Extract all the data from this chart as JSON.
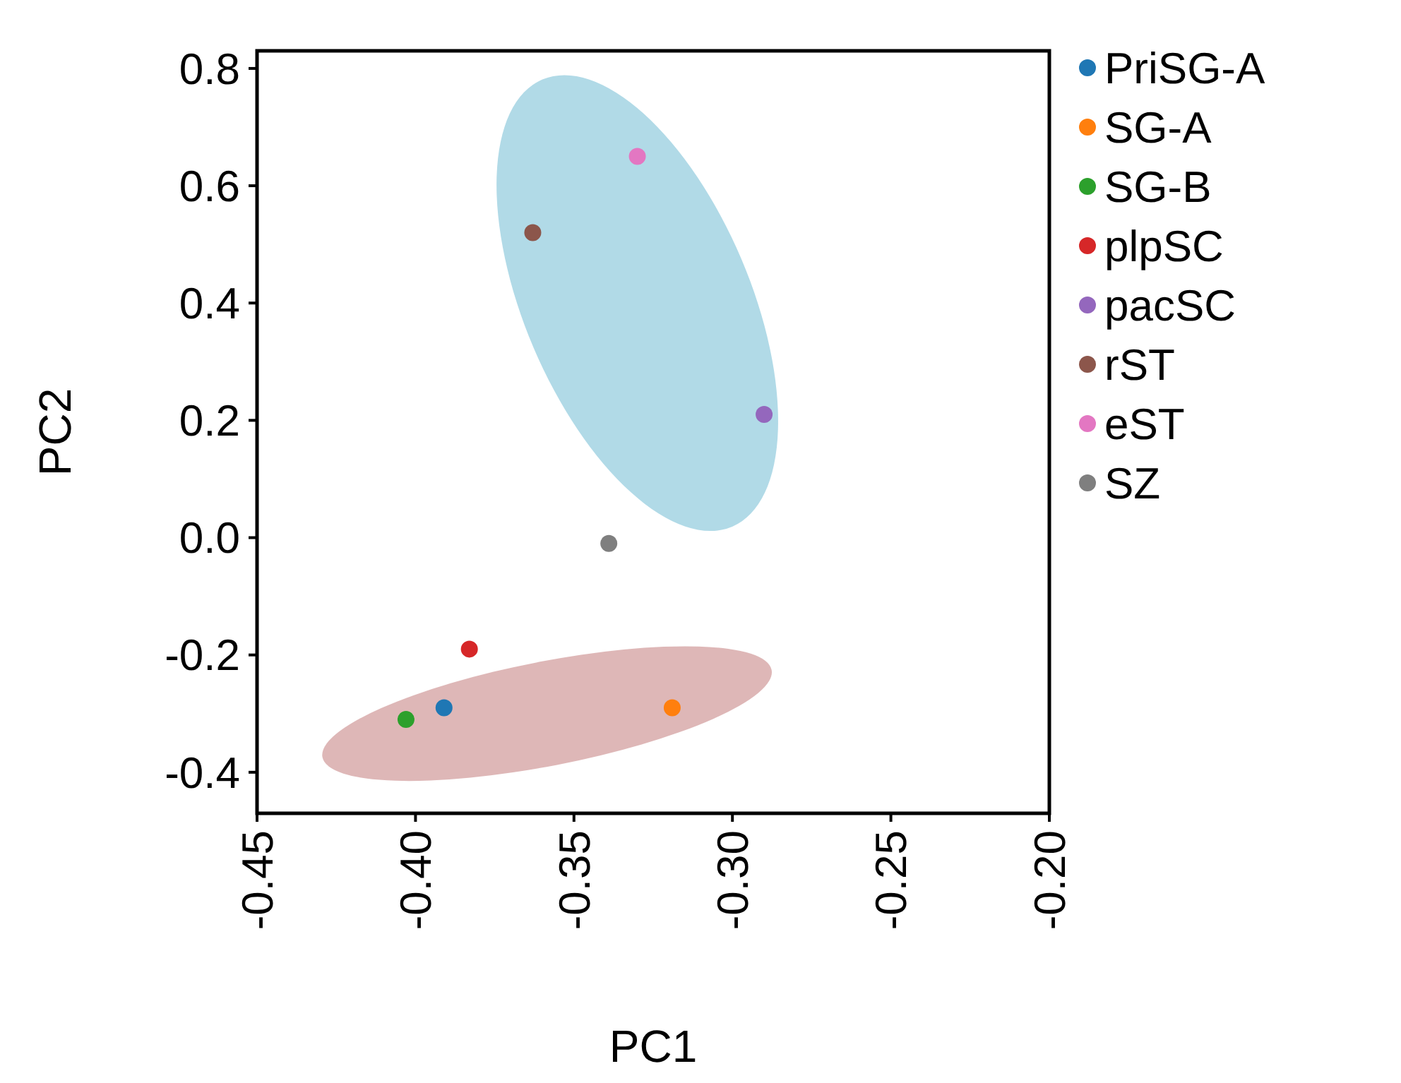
{
  "chart_data": {
    "type": "scatter",
    "xlabel": "PC1",
    "ylabel": "PC2",
    "xlim": [
      -0.45,
      -0.2
    ],
    "ylim": [
      -0.47,
      0.83
    ],
    "xticks": [
      -0.45,
      {
        "value": -0.4,
        "label": "-0.40"
      },
      -0.35,
      {
        "value": -0.3,
        "label": "-0.30"
      },
      -0.25,
      {
        "value": -0.2,
        "label": "-0.20"
      }
    ],
    "yticks": [
      -0.4,
      -0.2,
      {
        "value": 0,
        "label": "0.0"
      },
      0.2,
      0.4,
      0.6,
      0.8
    ],
    "grid": false,
    "legend": "right",
    "marker": "circle",
    "series": [
      {
        "name": "PriSG-A",
        "color": "#1f77b4",
        "x": [
          -0.391
        ],
        "values": [
          -0.29
        ]
      },
      {
        "name": "SG-A",
        "color": "#ff7f0e",
        "x": [
          -0.319
        ],
        "values": [
          -0.29
        ]
      },
      {
        "name": "SG-B",
        "color": "#2ca02c",
        "x": [
          -0.403
        ],
        "values": [
          -0.31
        ]
      },
      {
        "name": "plpSC",
        "color": "#d62728",
        "x": [
          -0.383
        ],
        "values": [
          -0.19
        ]
      },
      {
        "name": "pacSC",
        "color": "#9467bd",
        "x": [
          -0.29
        ],
        "values": [
          0.21
        ]
      },
      {
        "name": "rST",
        "color": "#8c564b",
        "x": [
          -0.363
        ],
        "values": [
          0.52
        ]
      },
      {
        "name": "eST",
        "color": "#e377c2",
        "x": [
          -0.33
        ],
        "values": [
          0.65
        ]
      },
      {
        "name": "SZ",
        "color": "#7f7f7f",
        "x": [
          -0.339
        ],
        "values": [
          -0.01
        ]
      }
    ]
  }
}
